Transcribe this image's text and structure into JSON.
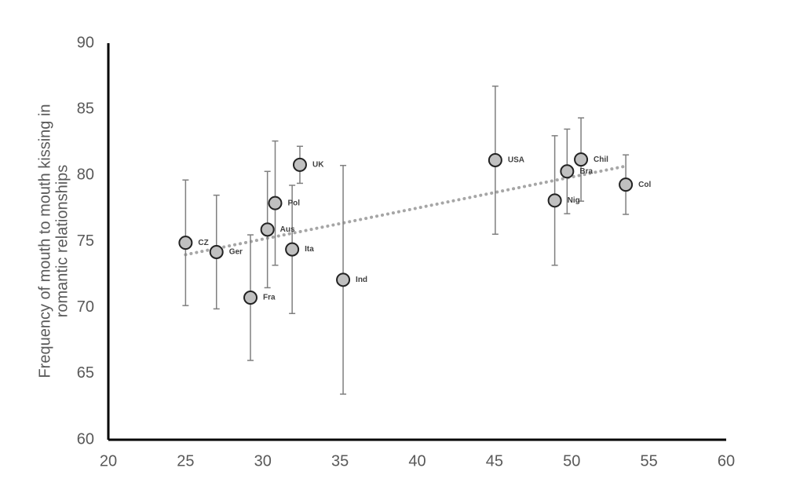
{
  "chart_data": {
    "type": "scatter",
    "ylabel": [
      "Frequency of mouth to mouth kissing in",
      "romantic relationships"
    ],
    "xlim": [
      20,
      60
    ],
    "xticks": [
      20,
      25,
      30,
      35,
      40,
      45,
      50,
      55,
      60
    ],
    "ylim": [
      60,
      90
    ],
    "yticks": [
      60,
      65,
      70,
      75,
      80,
      85,
      90
    ],
    "grid": false,
    "series": [
      {
        "color": "#c0c0c0",
        "error_color": "#7f7f7f",
        "labels": [
          "CZ",
          "Ger",
          "Fra",
          "Aus",
          "Pol",
          "Ita",
          "UK",
          "Ind",
          "USA",
          "Nig",
          "Bra",
          "Chil",
          "Col"
        ],
        "x": [
          25,
          27,
          29.2,
          30.3,
          30.8,
          31.9,
          32.4,
          35.2,
          45.05,
          48.9,
          49.7,
          50.6,
          53.5
        ],
        "values": [
          74.9,
          74.2,
          70.75,
          75.9,
          77.9,
          74.4,
          80.8,
          72.1,
          81.15,
          78.1,
          80.3,
          81.2,
          79.3
        ],
        "errors": [
          4.75,
          4.3,
          4.75,
          4.4,
          4.7,
          4.85,
          1.4,
          8.65,
          5.6,
          4.9,
          3.2,
          3.15,
          2.25
        ]
      }
    ],
    "trendline": {
      "color": "#a6a6a6",
      "x": [
        25,
        53.5
      ],
      "values": [
        74,
        80.7
      ]
    }
  }
}
